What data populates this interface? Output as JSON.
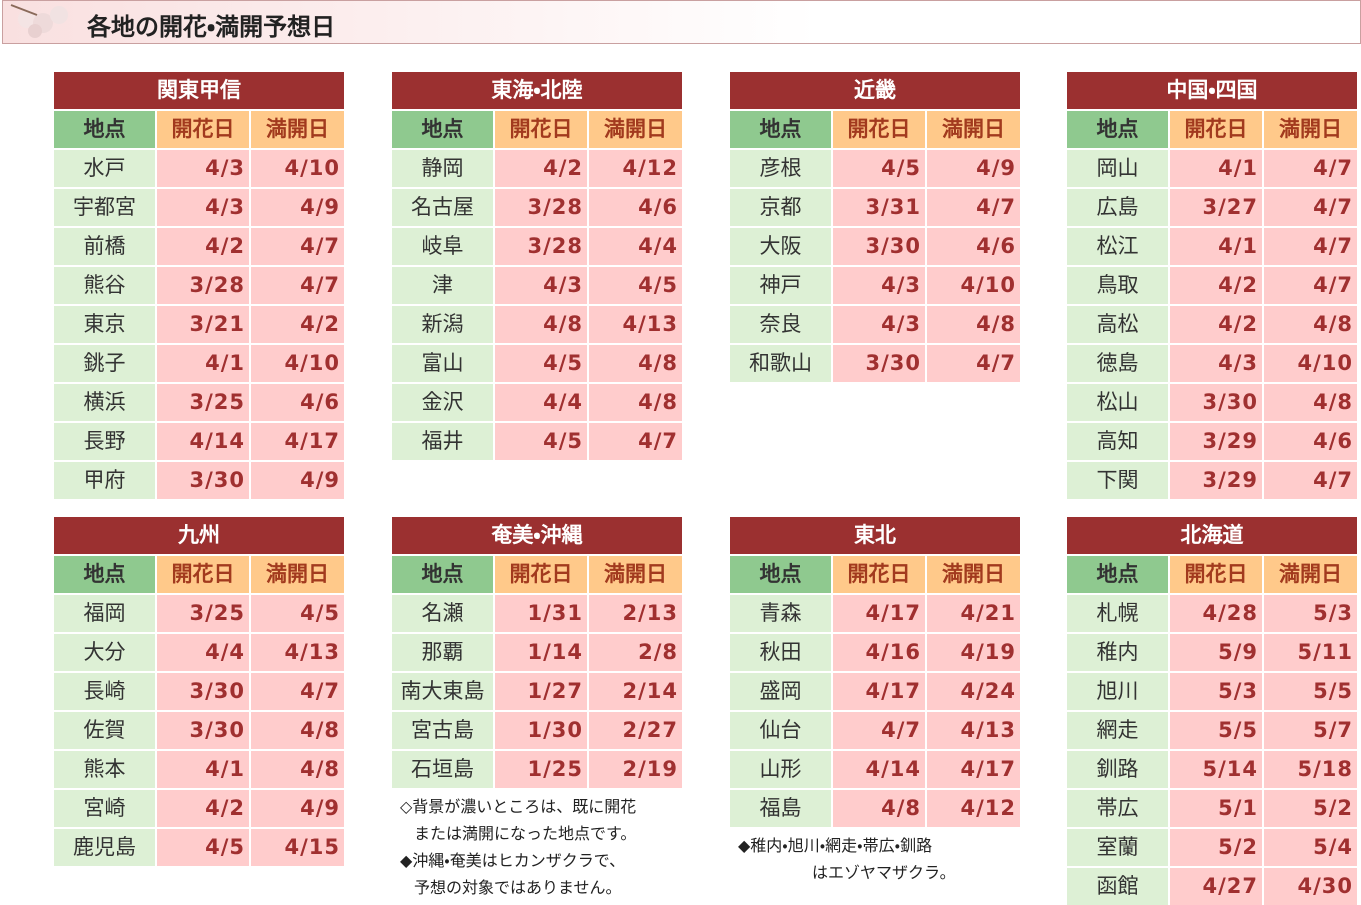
{
  "header": {
    "title": "各地の開花・満開予想日"
  },
  "tables": [
    {
      "title": "関東甲信",
      "columns": [
        "地点",
        "開花日",
        "満開日"
      ],
      "rows": [
        [
          "水戸",
          "4/3",
          "4/10"
        ],
        [
          "宇都宮",
          "4/3",
          "4/9"
        ],
        [
          "前橋",
          "4/2",
          "4/7"
        ],
        [
          "熊谷",
          "3/28",
          "4/7"
        ],
        [
          "東京",
          "3/21",
          "4/2"
        ],
        [
          "銚子",
          "4/1",
          "4/10"
        ],
        [
          "横浜",
          "3/25",
          "4/6"
        ],
        [
          "長野",
          "4/14",
          "4/17"
        ],
        [
          "甲府",
          "3/30",
          "4/9"
        ]
      ]
    },
    {
      "title": "東海・北陸",
      "columns": [
        "地点",
        "開花日",
        "満開日"
      ],
      "rows": [
        [
          "静岡",
          "4/2",
          "4/12"
        ],
        [
          "名古屋",
          "3/28",
          "4/6"
        ],
        [
          "岐阜",
          "3/28",
          "4/4"
        ],
        [
          "津",
          "4/3",
          "4/5"
        ],
        [
          "新潟",
          "4/8",
          "4/13"
        ],
        [
          "富山",
          "4/5",
          "4/8"
        ],
        [
          "金沢",
          "4/4",
          "4/8"
        ],
        [
          "福井",
          "4/5",
          "4/7"
        ]
      ]
    },
    {
      "title": "近畿",
      "columns": [
        "地点",
        "開花日",
        "満開日"
      ],
      "rows": [
        [
          "彦根",
          "4/5",
          "4/9"
        ],
        [
          "京都",
          "3/31",
          "4/7"
        ],
        [
          "大阪",
          "3/30",
          "4/6"
        ],
        [
          "神戸",
          "4/3",
          "4/10"
        ],
        [
          "奈良",
          "4/3",
          "4/8"
        ],
        [
          "和歌山",
          "3/30",
          "4/7"
        ]
      ]
    },
    {
      "title": "中国・四国",
      "columns": [
        "地点",
        "開花日",
        "満開日"
      ],
      "rows": [
        [
          "岡山",
          "4/1",
          "4/7"
        ],
        [
          "広島",
          "3/27",
          "4/7"
        ],
        [
          "松江",
          "4/1",
          "4/7"
        ],
        [
          "鳥取",
          "4/2",
          "4/7"
        ],
        [
          "高松",
          "4/2",
          "4/8"
        ],
        [
          "徳島",
          "4/3",
          "4/10"
        ],
        [
          "松山",
          "3/30",
          "4/8"
        ],
        [
          "高知",
          "3/29",
          "4/6"
        ],
        [
          "下関",
          "3/29",
          "4/7"
        ]
      ]
    },
    {
      "title": "九州",
      "columns": [
        "地点",
        "開花日",
        "満開日"
      ],
      "rows": [
        [
          "福岡",
          "3/25",
          "4/5"
        ],
        [
          "大分",
          "4/4",
          "4/13"
        ],
        [
          "長崎",
          "3/30",
          "4/7"
        ],
        [
          "佐賀",
          "3/30",
          "4/8"
        ],
        [
          "熊本",
          "4/1",
          "4/8"
        ],
        [
          "宮崎",
          "4/2",
          "4/9"
        ],
        [
          "鹿児島",
          "4/5",
          "4/15"
        ]
      ]
    },
    {
      "title": "奄美・沖縄",
      "columns": [
        "地点",
        "開花日",
        "満開日"
      ],
      "rows": [
        [
          "名瀬",
          "1/31",
          "2/13"
        ],
        [
          "那覇",
          "1/14",
          "2/8"
        ],
        [
          "南大東島",
          "1/27",
          "2/14"
        ],
        [
          "宮古島",
          "1/30",
          "2/27"
        ],
        [
          "石垣島",
          "1/25",
          "2/19"
        ]
      ],
      "notes": [
        "◇背景が濃いところは、既に開花",
        "または満開になった地点です。",
        "◆沖縄・奄美はヒカンザクラで、",
        "予想の対象ではありません。"
      ]
    },
    {
      "title": "東北",
      "columns": [
        "地点",
        "開花日",
        "満開日"
      ],
      "rows": [
        [
          "青森",
          "4/17",
          "4/21"
        ],
        [
          "秋田",
          "4/16",
          "4/19"
        ],
        [
          "盛岡",
          "4/17",
          "4/24"
        ],
        [
          "仙台",
          "4/7",
          "4/13"
        ],
        [
          "山形",
          "4/14",
          "4/17"
        ],
        [
          "福島",
          "4/8",
          "4/12"
        ]
      ],
      "notes": [
        "◆稚内・旭川・網走・帯広・釧路",
        "はエゾヤマザクラ。"
      ]
    },
    {
      "title": "北海道",
      "columns": [
        "地点",
        "開花日",
        "満開日"
      ],
      "rows": [
        [
          "札幌",
          "4/28",
          "5/3"
        ],
        [
          "稚内",
          "5/9",
          "5/11"
        ],
        [
          "旭川",
          "5/3",
          "5/5"
        ],
        [
          "網走",
          "5/5",
          "5/7"
        ],
        [
          "釧路",
          "5/14",
          "5/18"
        ],
        [
          "帯広",
          "5/1",
          "5/2"
        ],
        [
          "室蘭",
          "5/2",
          "5/4"
        ],
        [
          "函館",
          "4/27",
          "4/30"
        ]
      ]
    }
  ]
}
